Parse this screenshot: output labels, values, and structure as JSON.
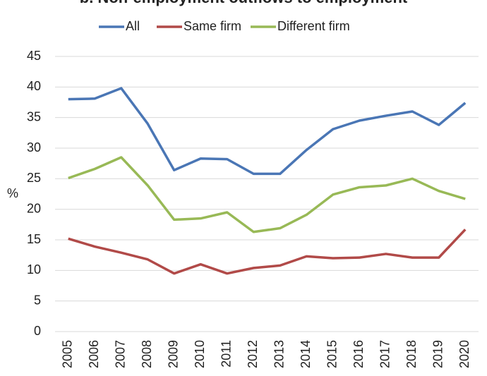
{
  "chart_data": {
    "type": "line",
    "title": "b. Non-employment outflows to employment",
    "y_label": "%",
    "categories": [
      "2005",
      "2006",
      "2007",
      "2008",
      "2009",
      "2010",
      "2011",
      "2012",
      "2013",
      "2014",
      "2015",
      "2016",
      "2017",
      "2018",
      "2019",
      "2020"
    ],
    "series": [
      {
        "name": "All",
        "color": "#4a76b5",
        "values": [
          38.0,
          38.1,
          39.8,
          34.0,
          26.4,
          28.3,
          28.2,
          25.8,
          25.8,
          29.7,
          33.1,
          34.5,
          35.3,
          36.0,
          33.8,
          37.4
        ]
      },
      {
        "name": "Same firm",
        "color": "#b14a48",
        "values": [
          15.2,
          13.9,
          12.9,
          11.8,
          9.5,
          11.0,
          9.5,
          10.4,
          10.8,
          12.3,
          12.0,
          12.1,
          12.7,
          12.1,
          12.1,
          16.7
        ]
      },
      {
        "name": "Different firm",
        "color": "#98b956",
        "values": [
          25.1,
          26.6,
          28.5,
          23.9,
          18.3,
          18.5,
          19.5,
          16.3,
          16.9,
          19.1,
          22.4,
          23.6,
          23.9,
          25.0,
          23.0,
          21.7
        ]
      }
    ],
    "ylim": [
      0,
      45
    ],
    "yticks": [
      0,
      5,
      10,
      15,
      20,
      25,
      30,
      35,
      40,
      45
    ],
    "grid": true,
    "legend": "top"
  }
}
